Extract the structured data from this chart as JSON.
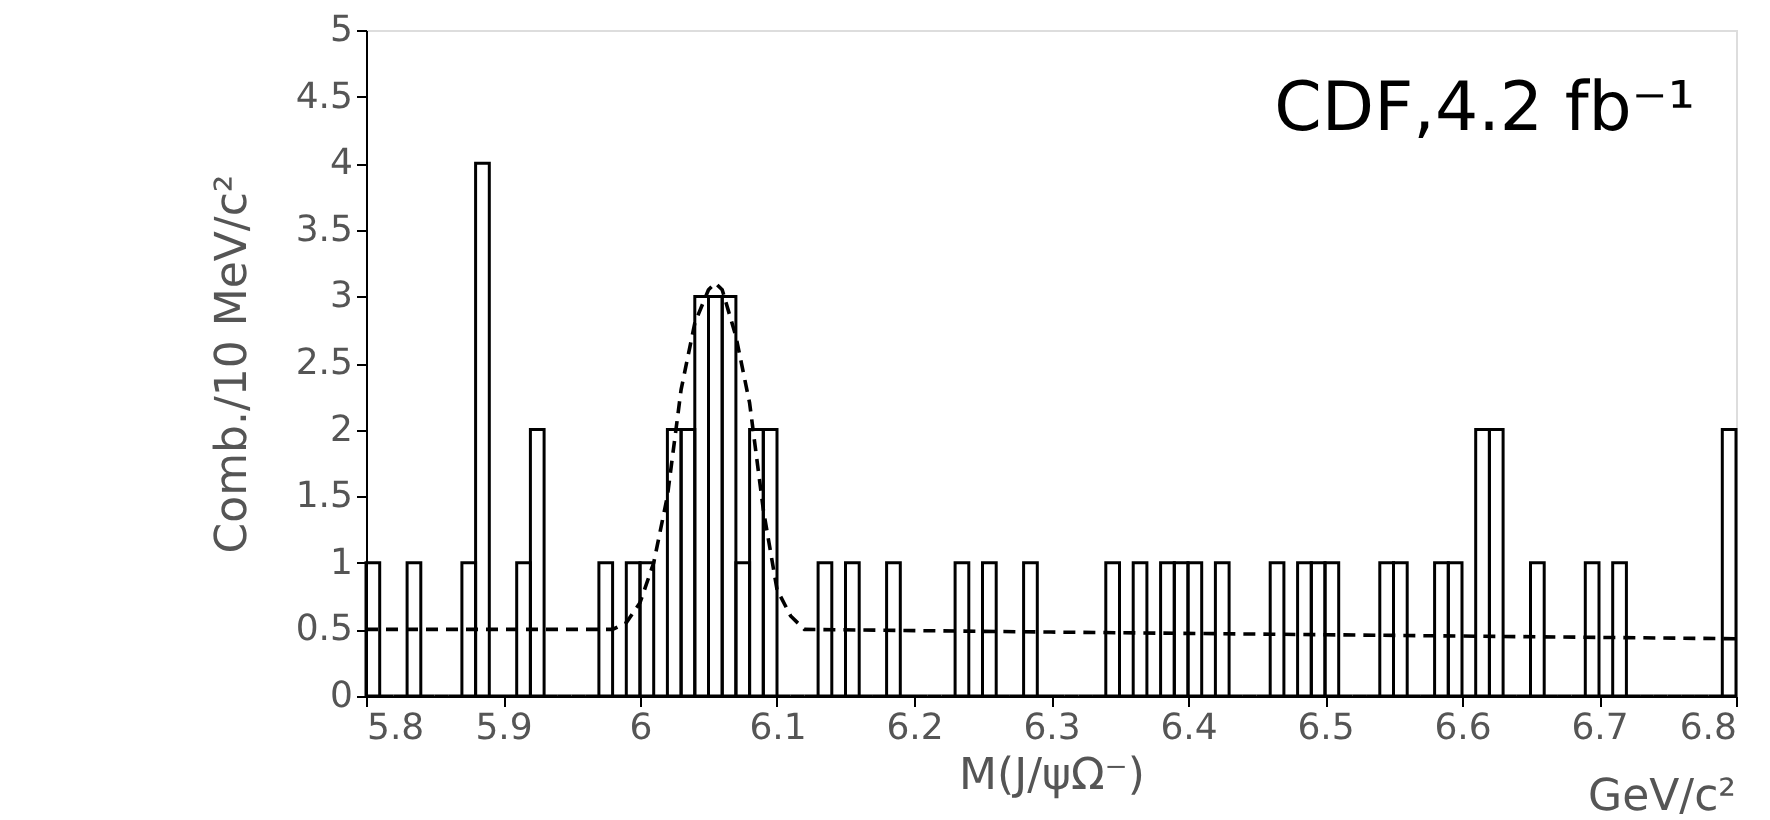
{
  "chart_data": {
    "type": "histogram",
    "xlabel": "M(J/ψΩ⁻)",
    "ylabel": "Comb./10 MeV/c²",
    "annotations": [
      "CDF,4.2 fb⁻¹",
      "GeV/c²"
    ],
    "bins": [
      5.8,
      5.81,
      5.82,
      5.83,
      5.84,
      5.85,
      5.86,
      5.87,
      5.88,
      5.89,
      5.9,
      5.91,
      5.92,
      5.93,
      5.94,
      5.95,
      5.96,
      5.97,
      5.98,
      5.99,
      6.0,
      6.01,
      6.02,
      6.03,
      6.04,
      6.05,
      6.06,
      6.07,
      6.08,
      6.09,
      6.1,
      6.11,
      6.12,
      6.13,
      6.14,
      6.15,
      6.16,
      6.17,
      6.18,
      6.19,
      6.2,
      6.21,
      6.22,
      6.23,
      6.24,
      6.25,
      6.26,
      6.27,
      6.28,
      6.29,
      6.3,
      6.31,
      6.32,
      6.33,
      6.34,
      6.35,
      6.36,
      6.37,
      6.38,
      6.39,
      6.4,
      6.41,
      6.42,
      6.43,
      6.44,
      6.45,
      6.46,
      6.47,
      6.48,
      6.49,
      6.5,
      6.51,
      6.52,
      6.53,
      6.54,
      6.55,
      6.56,
      6.57,
      6.58,
      6.59,
      6.6,
      6.61,
      6.62,
      6.63,
      6.64,
      6.65,
      6.66,
      6.67,
      6.68,
      6.69,
      6.7,
      6.71,
      6.72,
      6.73,
      6.74,
      6.75,
      6.76,
      6.77,
      6.78,
      6.79,
      6.8
    ],
    "values": [
      1,
      0,
      0,
      1,
      0,
      0,
      0,
      1,
      4,
      0,
      0,
      1,
      2,
      0,
      0,
      0,
      0,
      1,
      0,
      1,
      1,
      0,
      2,
      2,
      3,
      3,
      3,
      1,
      2,
      2,
      0,
      0,
      0,
      1,
      0,
      1,
      0,
      0,
      1,
      0,
      0,
      0,
      0,
      1,
      0,
      1,
      0,
      0,
      1,
      0,
      0,
      0,
      0,
      0,
      1,
      0,
      1,
      0,
      1,
      1,
      1,
      0,
      1,
      0,
      0,
      0,
      1,
      0,
      1,
      1,
      1,
      0,
      0,
      0,
      1,
      1,
      0,
      0,
      1,
      1,
      0,
      2,
      2,
      0,
      0,
      1,
      0,
      0,
      0,
      1,
      0,
      1,
      0,
      0,
      0,
      0,
      0,
      0,
      0,
      2
    ],
    "color": "#000000",
    "series": [
      {
        "type": "line",
        "line_style": "dashed",
        "color": "#000000",
        "x": [
          5.8,
          5.98,
          5.99,
          6.0,
          6.01,
          6.02,
          6.03,
          6.04,
          6.05,
          6.055,
          6.06,
          6.07,
          6.08,
          6.09,
          6.1,
          6.11,
          6.12,
          6.3,
          6.5,
          6.8
        ],
        "values": [
          0.5,
          0.5,
          0.55,
          0.7,
          1.0,
          1.5,
          2.3,
          2.8,
          3.05,
          3.1,
          3.05,
          2.7,
          2.2,
          1.4,
          0.8,
          0.6,
          0.5,
          0.48,
          0.46,
          0.43
        ]
      }
    ],
    "xlim": [
      5.8,
      6.8
    ],
    "xticks": [
      5.8,
      5.9,
      6,
      6.1,
      6.2,
      6.3,
      6.4,
      6.5,
      6.6,
      6.7,
      6.8
    ],
    "ylim": [
      0,
      5
    ],
    "yticks": [
      0,
      0.5,
      1,
      1.5,
      2,
      2.5,
      3,
      3.5,
      4,
      4.5,
      5
    ],
    "grid": false
  }
}
